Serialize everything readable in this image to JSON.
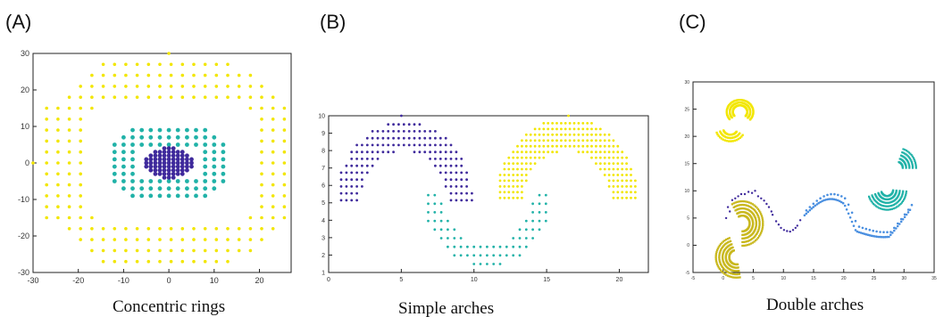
{
  "colors": {
    "yellow": "#f2e600",
    "teal": "#21b2a8",
    "purple": "#3f2a9c",
    "blue": "#4a8fe0",
    "olive": "#c9b81e"
  },
  "panels": [
    {
      "label": "(A)",
      "caption": "Concentric rings"
    },
    {
      "label": "(B)",
      "caption": "Simple arches"
    },
    {
      "label": "(C)",
      "caption": "Double arches"
    }
  ],
  "chart_data": [
    {
      "type": "scatter",
      "title": "",
      "caption": "Concentric rings",
      "xlim": [
        -30,
        27
      ],
      "ylim": [
        -30,
        30
      ],
      "xticks": [
        -30,
        -20,
        -10,
        0,
        10,
        20
      ],
      "yticks": [
        30,
        20,
        10,
        0,
        -10,
        -20,
        -30
      ],
      "series": [
        {
          "color": "yellow",
          "shape": "outer ring",
          "x_range": [
            -27,
            27
          ],
          "y_range": [
            -27,
            27
          ],
          "spacing": 2.5
        },
        {
          "color": "teal",
          "shape": "middle ring",
          "x_range": [
            -12,
            12
          ],
          "y_range": [
            -9,
            9
          ],
          "spacing": 2
        },
        {
          "color": "purple",
          "shape": "inner filled ellipse",
          "center": [
            0,
            0
          ],
          "rx": 5,
          "ry": 4
        }
      ]
    },
    {
      "type": "scatter",
      "title": "",
      "caption": "Simple arches",
      "xlim": [
        0,
        22
      ],
      "ylim": [
        1,
        10
      ],
      "xticks": [
        0,
        5,
        10,
        15,
        20
      ],
      "yticks": [
        10,
        9,
        8,
        7,
        6,
        5,
        4,
        3,
        2,
        1
      ],
      "series": [
        {
          "color": "purple",
          "shape": "upward arch",
          "center": [
            5.2,
            5.0
          ],
          "outer_radius": 4.7,
          "inner_radius": 3.0
        },
        {
          "color": "teal",
          "shape": "downward arch",
          "center": [
            10.9,
            5.8
          ],
          "outer_radius": 4.5,
          "inner_radius": 3.2
        },
        {
          "color": "yellow",
          "shape": "upward arch",
          "center": [
            16.4,
            5.0
          ],
          "outer_radius": 4.9,
          "inner_radius": 3.0
        }
      ]
    },
    {
      "type": "scatter",
      "title": "",
      "caption": "Double arches",
      "xlim": [
        -5,
        35
      ],
      "ylim": [
        -5,
        30
      ],
      "xticks": [
        -5,
        0,
        5,
        10,
        15,
        20,
        25,
        30,
        35
      ],
      "yticks": [
        30,
        25,
        20,
        15,
        10,
        5,
        0,
        -5
      ],
      "series": [
        {
          "color": "yellow",
          "shape": "small hook",
          "center": [
            2.5,
            24
          ]
        },
        {
          "color": "purple",
          "shape": "sparse double arch",
          "x_range": [
            0,
            13
          ],
          "y_range": [
            1,
            10
          ]
        },
        {
          "color": "blue",
          "shape": "sparse double arch",
          "x_range": [
            13,
            31
          ],
          "y_range": [
            1,
            8
          ]
        },
        {
          "color": "teal",
          "shape": "dense S-curve",
          "x_range": [
            25,
            32
          ],
          "y_range": [
            2,
            17
          ]
        },
        {
          "color": "olive",
          "shape": "dense S-curve",
          "x_range": [
            -1,
            7
          ],
          "y_range": [
            -6,
            7
          ]
        }
      ]
    }
  ]
}
